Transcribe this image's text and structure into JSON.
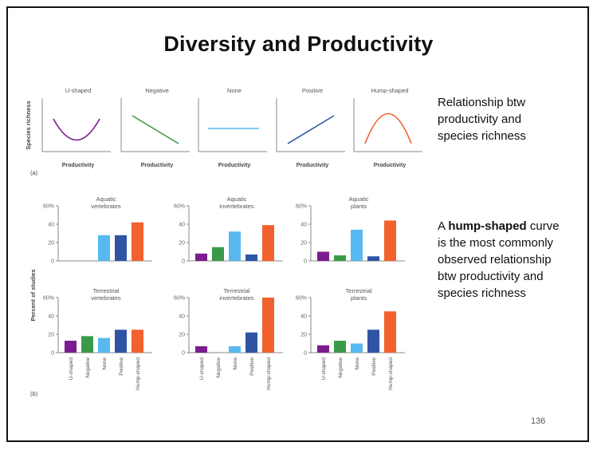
{
  "slide": {
    "title": "Diversity and Productivity",
    "note1": "Relationship btw productivity and species richness",
    "note2_bold": "hump-shaped",
    "note2_prefix": "A ",
    "note2_suffix": " curve is the most commonly observed relationship btw productivity and species richness",
    "page_number": "136"
  },
  "colors": {
    "u_shaped": "#7b1c8e",
    "negative": "#3a9a48",
    "none": "#57b9ef",
    "positive": "#3054a4",
    "hump_shaped": "#f2612e",
    "axis": "#888888"
  },
  "chart_data": [
    {
      "panel": "a",
      "type": "line",
      "ylabel": "Species richness",
      "xlabel": "Productivity",
      "label": "(a)",
      "minis": [
        {
          "title": "U-shaped",
          "shape": "u"
        },
        {
          "title": "Negative",
          "shape": "negative"
        },
        {
          "title": "None",
          "shape": "none"
        },
        {
          "title": "Positive",
          "shape": "positive"
        },
        {
          "title": "Hump-shaped",
          "shape": "hump"
        }
      ]
    },
    {
      "panel": "b",
      "type": "bar",
      "label": "(b)",
      "ylabel": "Percent of studies",
      "ylim": [
        0,
        60
      ],
      "yticks": [
        "0",
        "20",
        "40",
        "60%"
      ],
      "categories": [
        "U-shaped",
        "Negative",
        "None",
        "Positive",
        "Hump-shaped"
      ],
      "charts": [
        {
          "title": "Aquatic vertebrates",
          "values": [
            0,
            0,
            28,
            28,
            42
          ]
        },
        {
          "title": "Aquatic invertebrates",
          "values": [
            8,
            15,
            32,
            7,
            39
          ]
        },
        {
          "title": "Aquatic plants",
          "values": [
            10,
            6,
            34,
            5,
            44
          ]
        },
        {
          "title": "Terrestrial vertebrates",
          "values": [
            13,
            18,
            16,
            25,
            25
          ]
        },
        {
          "title": "Terrestrial invertebrates",
          "values": [
            7,
            0,
            7,
            22,
            60
          ]
        },
        {
          "title": "Terrestrial plants",
          "values": [
            8,
            13,
            10,
            25,
            45
          ]
        }
      ]
    }
  ]
}
